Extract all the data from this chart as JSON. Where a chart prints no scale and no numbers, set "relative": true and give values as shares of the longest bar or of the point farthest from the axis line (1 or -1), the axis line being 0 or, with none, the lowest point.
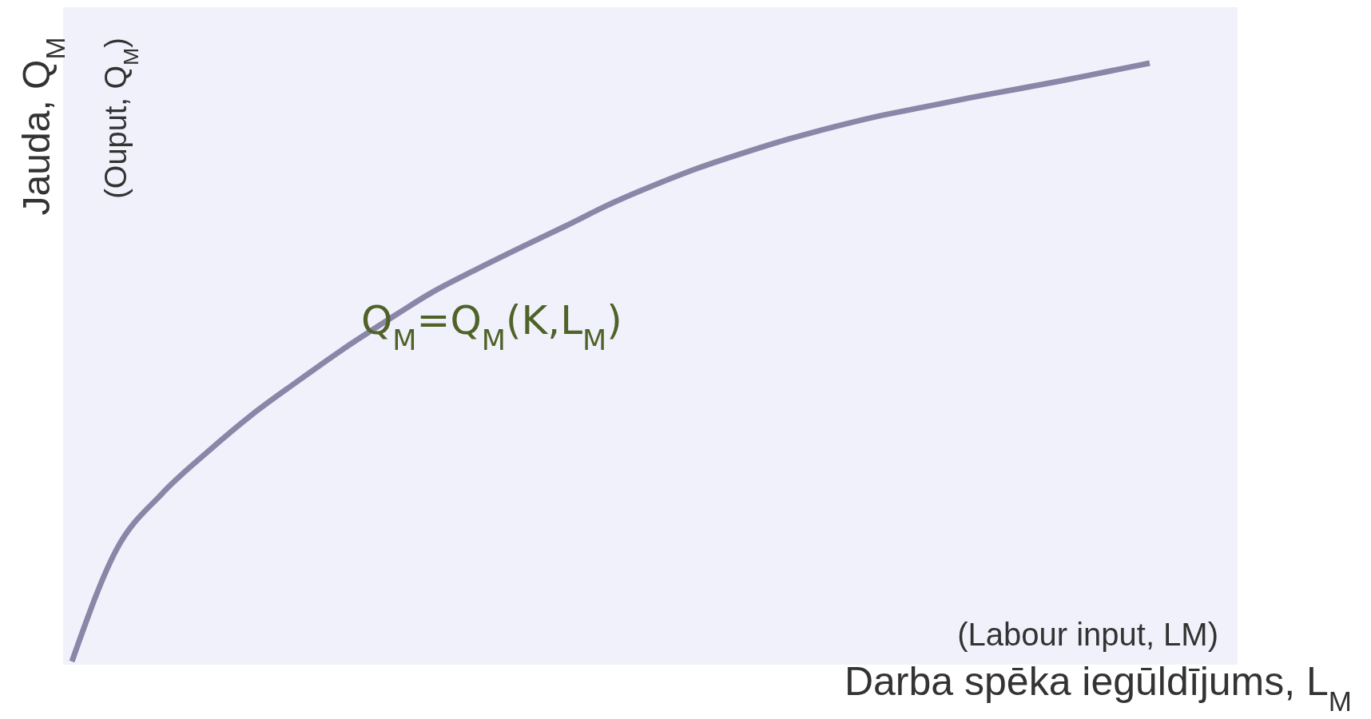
{
  "chart_data": {
    "type": "line",
    "relative": true,
    "xlabel": "Darba spēka iegūldījums, L$_{M}$",
    "ylabel": "Jauda, Q$_{M}$",
    "annotations": [
      "(Ouput, Q$_{M}$)",
      "(Labour input, LM)"
    ],
    "categories": [
      null,
      null,
      null,
      null,
      null,
      null,
      null,
      null,
      null,
      null,
      null,
      null,
      null,
      null,
      null,
      null,
      null,
      null,
      null,
      null,
      null,
      null,
      null,
      null,
      null
    ],
    "series": [
      {
        "name": "Q$_{M}$=Q$_{M}$(K,L$_{M}$)",
        "color": "#8a86a8",
        "values": [
          0,
          0.188,
          0.28,
          0.349,
          0.412,
          0.467,
          0.52,
          0.569,
          0.616,
          0.655,
          0.692,
          0.728,
          0.765,
          0.797,
          0.826,
          0.851,
          0.874,
          0.894,
          0.912,
          0.927,
          0.942,
          0.956,
          0.97,
          0.985,
          1
        ]
      }
    ],
    "marker": "none",
    "line_style": "solid"
  }
}
